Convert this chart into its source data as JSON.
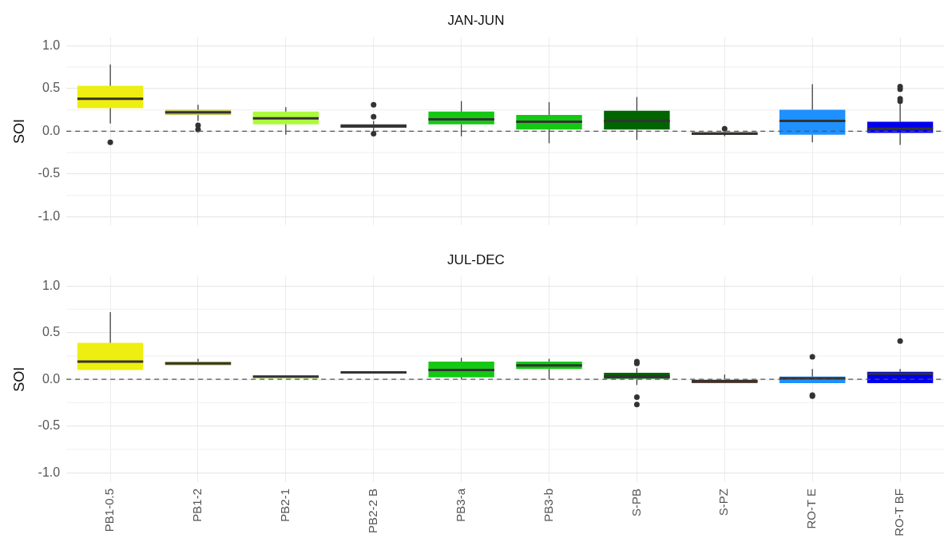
{
  "chart_data": [
    {
      "type": "box",
      "title": "JAN-JUN",
      "ylabel": "SOI",
      "tick_labels": "y",
      "grid": true,
      "categories": [
        null,
        null,
        null,
        null,
        null,
        null,
        null,
        null,
        null,
        null
      ],
      "colors": [
        "#eeee11",
        "#c8c864",
        "#adfa3c",
        "#404040",
        "#14c814",
        "#14c814",
        "#006400",
        "#6b4a3a",
        "#1e90ff",
        "#0000ee"
      ],
      "ylim": [
        -1.1,
        1.1
      ],
      "yticks": [
        {
          "value": -1,
          "label": "-1.0"
        },
        {
          "value": -0.5,
          "label": "-0.5"
        },
        {
          "value": 0,
          "label": "0.0"
        },
        {
          "value": 0.5,
          "label": "0.5"
        },
        {
          "value": 1,
          "label": "1.0"
        }
      ],
      "ref_lines": [
        {
          "axis": "y",
          "value": 0,
          "color": "#555555",
          "line_style": "dashed"
        }
      ],
      "boxes": [
        {
          "low": 0.09,
          "q1": 0.27,
          "median": 0.38,
          "q3": 0.53,
          "high": 0.78,
          "outliers": [
            -0.13
          ]
        },
        {
          "low": 0.12,
          "q1": 0.19,
          "median": 0.22,
          "q3": 0.25,
          "high": 0.31,
          "outliers": [
            0.07,
            0.02
          ]
        },
        {
          "low": -0.04,
          "q1": 0.08,
          "median": 0.15,
          "q3": 0.23,
          "high": 0.28
        },
        {
          "low": 0.0,
          "q1": 0.04,
          "median": 0.06,
          "q3": 0.08,
          "high": 0.12,
          "outliers": [
            0.31,
            0.17,
            -0.03
          ]
        },
        {
          "low": -0.06,
          "q1": 0.08,
          "median": 0.14,
          "q3": 0.23,
          "high": 0.35
        },
        {
          "low": -0.14,
          "q1": 0.02,
          "median": 0.11,
          "q3": 0.19,
          "high": 0.34
        },
        {
          "low": -0.1,
          "q1": 0.02,
          "median": 0.12,
          "q3": 0.24,
          "high": 0.4
        },
        {
          "low": -0.06,
          "q1": -0.04,
          "median": -0.03,
          "q3": -0.01,
          "high": 0.0,
          "outliers": [
            0.03
          ]
        },
        {
          "low": -0.13,
          "q1": -0.04,
          "median": 0.12,
          "q3": 0.25,
          "high": 0.55
        },
        {
          "low": -0.16,
          "q1": -0.02,
          "median": 0.03,
          "q3": 0.11,
          "high": 0.33,
          "outliers": [
            0.52,
            0.49,
            0.38,
            0.35
          ]
        }
      ]
    },
    {
      "type": "box",
      "title": "JUL-DEC",
      "ylabel": "SOI",
      "grid": true,
      "categories": [
        "PB1-0.5",
        "PB1-2",
        "PB2-1",
        "PB2-2 B",
        "PB3-a",
        "PB3-b",
        "S-PB",
        "S-PZ",
        "RO-T E",
        "RO-T BF"
      ],
      "colors": [
        "#eeee11",
        "#c8c864",
        "#adfa3c",
        "#404040",
        "#14c814",
        "#14c814",
        "#006400",
        "#6b4a3a",
        "#1e90ff",
        "#0000ee"
      ],
      "ylim": [
        -1.1,
        1.1
      ],
      "yticks": [
        {
          "value": -1,
          "label": "-1.0"
        },
        {
          "value": -0.5,
          "label": "-0.5"
        },
        {
          "value": 0,
          "label": "0.0"
        },
        {
          "value": 0.5,
          "label": "0.5"
        },
        {
          "value": 1,
          "label": "1.0"
        }
      ],
      "ref_lines": [
        {
          "axis": "y",
          "value": 0,
          "color": "#555555",
          "line_style": "dashed"
        }
      ],
      "boxes": [
        {
          "low": 0.1,
          "q1": 0.1,
          "median": 0.19,
          "q3": 0.39,
          "high": 0.72
        },
        {
          "low": 0.15,
          "q1": 0.15,
          "median": 0.17,
          "q3": 0.19,
          "high": 0.22
        },
        {
          "low": 0.01,
          "q1": 0.01,
          "median": 0.03,
          "q3": 0.04,
          "high": 0.04
        },
        {
          "low": 0.07,
          "q1": 0.07,
          "median": 0.075,
          "q3": 0.08,
          "high": 0.08
        },
        {
          "low": 0.0,
          "q1": 0.02,
          "median": 0.1,
          "q3": 0.19,
          "high": 0.23
        },
        {
          "low": 0.0,
          "q1": 0.11,
          "median": 0.15,
          "q3": 0.19,
          "high": 0.22
        },
        {
          "low": -0.06,
          "q1": 0.0,
          "median": 0.03,
          "q3": 0.07,
          "high": 0.12,
          "outliers": [
            0.19,
            0.17,
            -0.19,
            -0.27
          ]
        },
        {
          "low": -0.04,
          "q1": -0.04,
          "median": -0.02,
          "q3": 0.0,
          "high": 0.05
        },
        {
          "low": -0.04,
          "q1": -0.04,
          "median": 0.01,
          "q3": 0.03,
          "high": 0.11,
          "outliers": [
            0.24,
            -0.17,
            -0.18
          ]
        },
        {
          "low": -0.04,
          "q1": -0.04,
          "median": 0.06,
          "q3": 0.08,
          "high": 0.11,
          "outliers": [
            0.41
          ]
        }
      ]
    }
  ]
}
